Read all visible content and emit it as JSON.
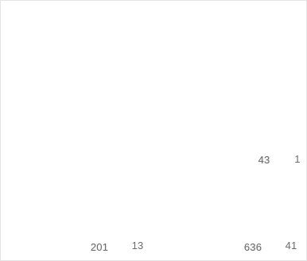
{
  "cells": {
    "upper_left": "43",
    "upper_right": "1",
    "lower_a": "201",
    "lower_b": "13",
    "lower_c": "636",
    "lower_d": "41"
  }
}
